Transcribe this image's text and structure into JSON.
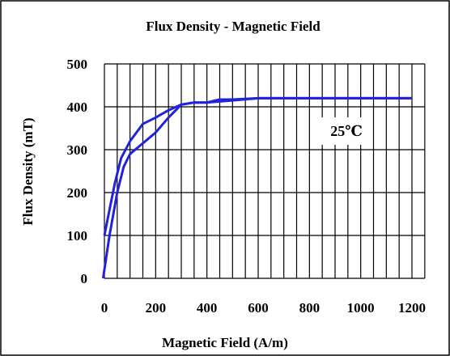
{
  "chart_data": {
    "type": "line",
    "title": "Flux Density - Magnetic Field",
    "xlabel": "Magnetic Field (A/m)",
    "ylabel": "Flux Density (mT)",
    "xlim": [
      0,
      1200
    ],
    "ylim": [
      0,
      500
    ],
    "x_ticks": [
      0,
      200,
      400,
      600,
      800,
      1000,
      1200
    ],
    "y_ticks": [
      0,
      100,
      200,
      300,
      400,
      500
    ],
    "x_tick_labels": [
      "0",
      "200",
      "400",
      "600",
      "800",
      "1000",
      "1200"
    ],
    "y_tick_labels": [
      "0",
      "100",
      "200",
      "300",
      "400",
      "500"
    ],
    "grid": true,
    "annotation": "25℃",
    "line_color": "#2222dd",
    "series": [
      {
        "points": [
          [
            -5,
            0
          ],
          [
            20,
            100
          ],
          [
            50,
            200
          ],
          [
            75,
            260
          ],
          [
            100,
            290
          ],
          [
            150,
            315
          ],
          [
            200,
            340
          ],
          [
            250,
            375
          ],
          [
            300,
            405
          ],
          [
            350,
            410
          ],
          [
            400,
            410
          ],
          [
            500,
            415
          ],
          [
            600,
            420
          ],
          [
            800,
            420
          ],
          [
            1000,
            420
          ],
          [
            1200,
            420
          ]
        ]
      },
      {
        "points": [
          [
            0,
            100
          ],
          [
            20,
            160
          ],
          [
            40,
            220
          ],
          [
            65,
            280
          ],
          [
            100,
            320
          ],
          [
            150,
            360
          ],
          [
            200,
            375
          ],
          [
            250,
            392
          ],
          [
            300,
            405
          ],
          [
            350,
            410
          ],
          [
            400,
            410
          ],
          [
            450,
            417
          ],
          [
            500,
            417
          ],
          [
            600,
            420
          ],
          [
            800,
            420
          ],
          [
            1000,
            420
          ],
          [
            1200,
            420
          ]
        ]
      }
    ]
  }
}
